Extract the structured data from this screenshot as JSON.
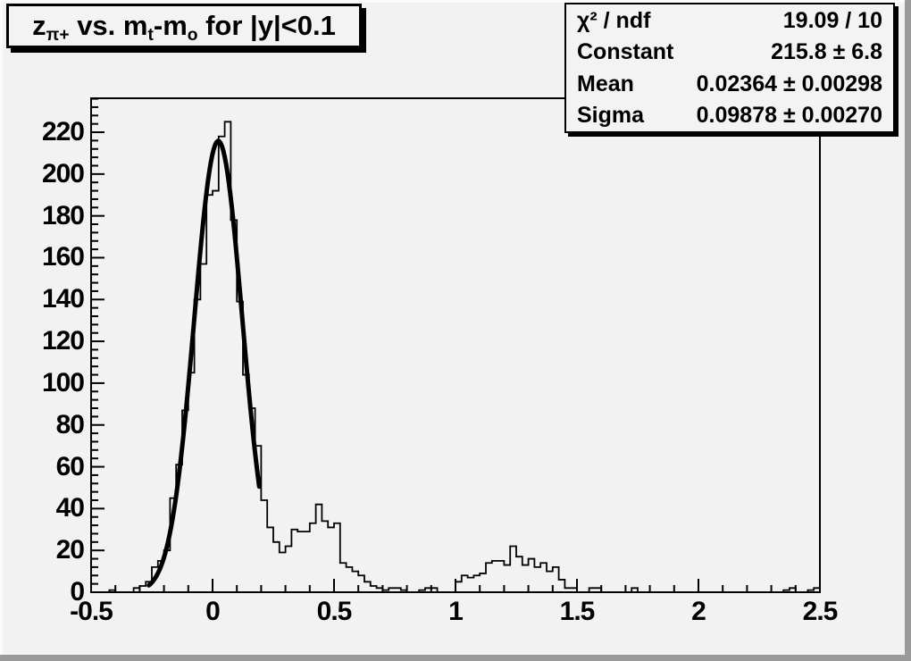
{
  "colors": {
    "canvas_background": "#f2f2f2",
    "frame": "#000000",
    "histogram_line": "#000000",
    "fit_line": "#000000",
    "bevel_shadow": "#9a9a9a",
    "text": "#000000"
  },
  "title": {
    "plain": "z_{pi+} vs. m_t-m_o for |y|<0.1",
    "segments": [
      {
        "text": "z"
      },
      {
        "text": "π+",
        "sub": true
      },
      {
        "text": " vs. m"
      },
      {
        "text": "t",
        "sub": true
      },
      {
        "text": "-m"
      },
      {
        "text": "o",
        "sub": true
      },
      {
        "text": " for |y|<0.1"
      }
    ]
  },
  "stats_box": {
    "rows": [
      {
        "label": "χ² / ndf",
        "value": "19.09 / 10"
      },
      {
        "label": "Constant",
        "value": "215.8 ± 6.8"
      },
      {
        "label": "Mean",
        "value": "0.02364 ± 0.00298"
      },
      {
        "label": "Sigma",
        "value": "0.09878 ± 0.00270"
      }
    ]
  },
  "chart_data": {
    "type": "bar",
    "subtype": "histogram-step-outline",
    "title": "z_{pi+} vs. m_t-m_o for |y|<0.1",
    "xlabel": "",
    "ylabel": "",
    "xlim": [
      -0.5,
      2.5
    ],
    "ylim": [
      0,
      236.25
    ],
    "grid": false,
    "bin_start": -0.5,
    "bin_width": 0.025,
    "counts": [
      0,
      0,
      0,
      1,
      0,
      0,
      0,
      2,
      3,
      5,
      12,
      15,
      20,
      45,
      61,
      87,
      105,
      140,
      157,
      190,
      192,
      218,
      225,
      178,
      139,
      104,
      88,
      70,
      44,
      31,
      24,
      19,
      22,
      30,
      29,
      29,
      33,
      42,
      34,
      31,
      33,
      14,
      12,
      10,
      8,
      5,
      3,
      2,
      1,
      2,
      2,
      1,
      0,
      0,
      1,
      2,
      2,
      0,
      0,
      0,
      5,
      8,
      7,
      8,
      9,
      14,
      15,
      15,
      13,
      22,
      17,
      13,
      16,
      12,
      14,
      10,
      12,
      6,
      2,
      2,
      0,
      0,
      2,
      2,
      0,
      0,
      0,
      0,
      0,
      2,
      0,
      0,
      0,
      0,
      0,
      0,
      0,
      0,
      0,
      0,
      0,
      0,
      0,
      0,
      0,
      0,
      0,
      0,
      0,
      0,
      0,
      0,
      0,
      0,
      1,
      2,
      0,
      0,
      1,
      2
    ],
    "fit": {
      "model": "gaussian",
      "constant": 215.8,
      "mean": 0.02364,
      "sigma": 0.09878,
      "chi2": 19.09,
      "ndf": 10,
      "draw_range": [
        -0.262,
        0.192
      ]
    },
    "x_axis": {
      "major_tick_values": [
        -0.5,
        0,
        0.5,
        1,
        1.5,
        2,
        2.5
      ],
      "tick_labels": [
        "-0.5",
        "0",
        "0.5",
        "1",
        "1.5",
        "2",
        "2.5"
      ],
      "minor_step": 0.1
    },
    "y_axis": {
      "major_step": 20,
      "minor_step": 4,
      "tick_labels": [
        "0",
        "20",
        "40",
        "60",
        "80",
        "100",
        "120",
        "140",
        "160",
        "180",
        "200",
        "220"
      ]
    },
    "legend_position": "none"
  }
}
